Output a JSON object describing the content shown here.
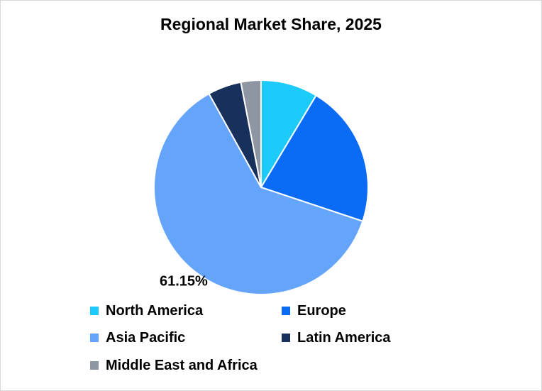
{
  "chart_data": {
    "type": "pie",
    "title": "Regional Market Share, 2025",
    "categories": [
      "North America",
      "Europe",
      "Asia Pacific",
      "Latin America",
      "Middle East and Africa"
    ],
    "values": [
      8.5,
      21.3,
      61.15,
      5.0,
      3.0
    ],
    "colors": [
      "#1ccbfa",
      "#0a6cf5",
      "#64a4fb",
      "#17305c",
      "#8f96a3"
    ],
    "data_labels": [
      "",
      "",
      "61.15%",
      "",
      ""
    ],
    "start_angle_deg": 0,
    "direction": "clockwise",
    "legend_position": "bottom"
  }
}
